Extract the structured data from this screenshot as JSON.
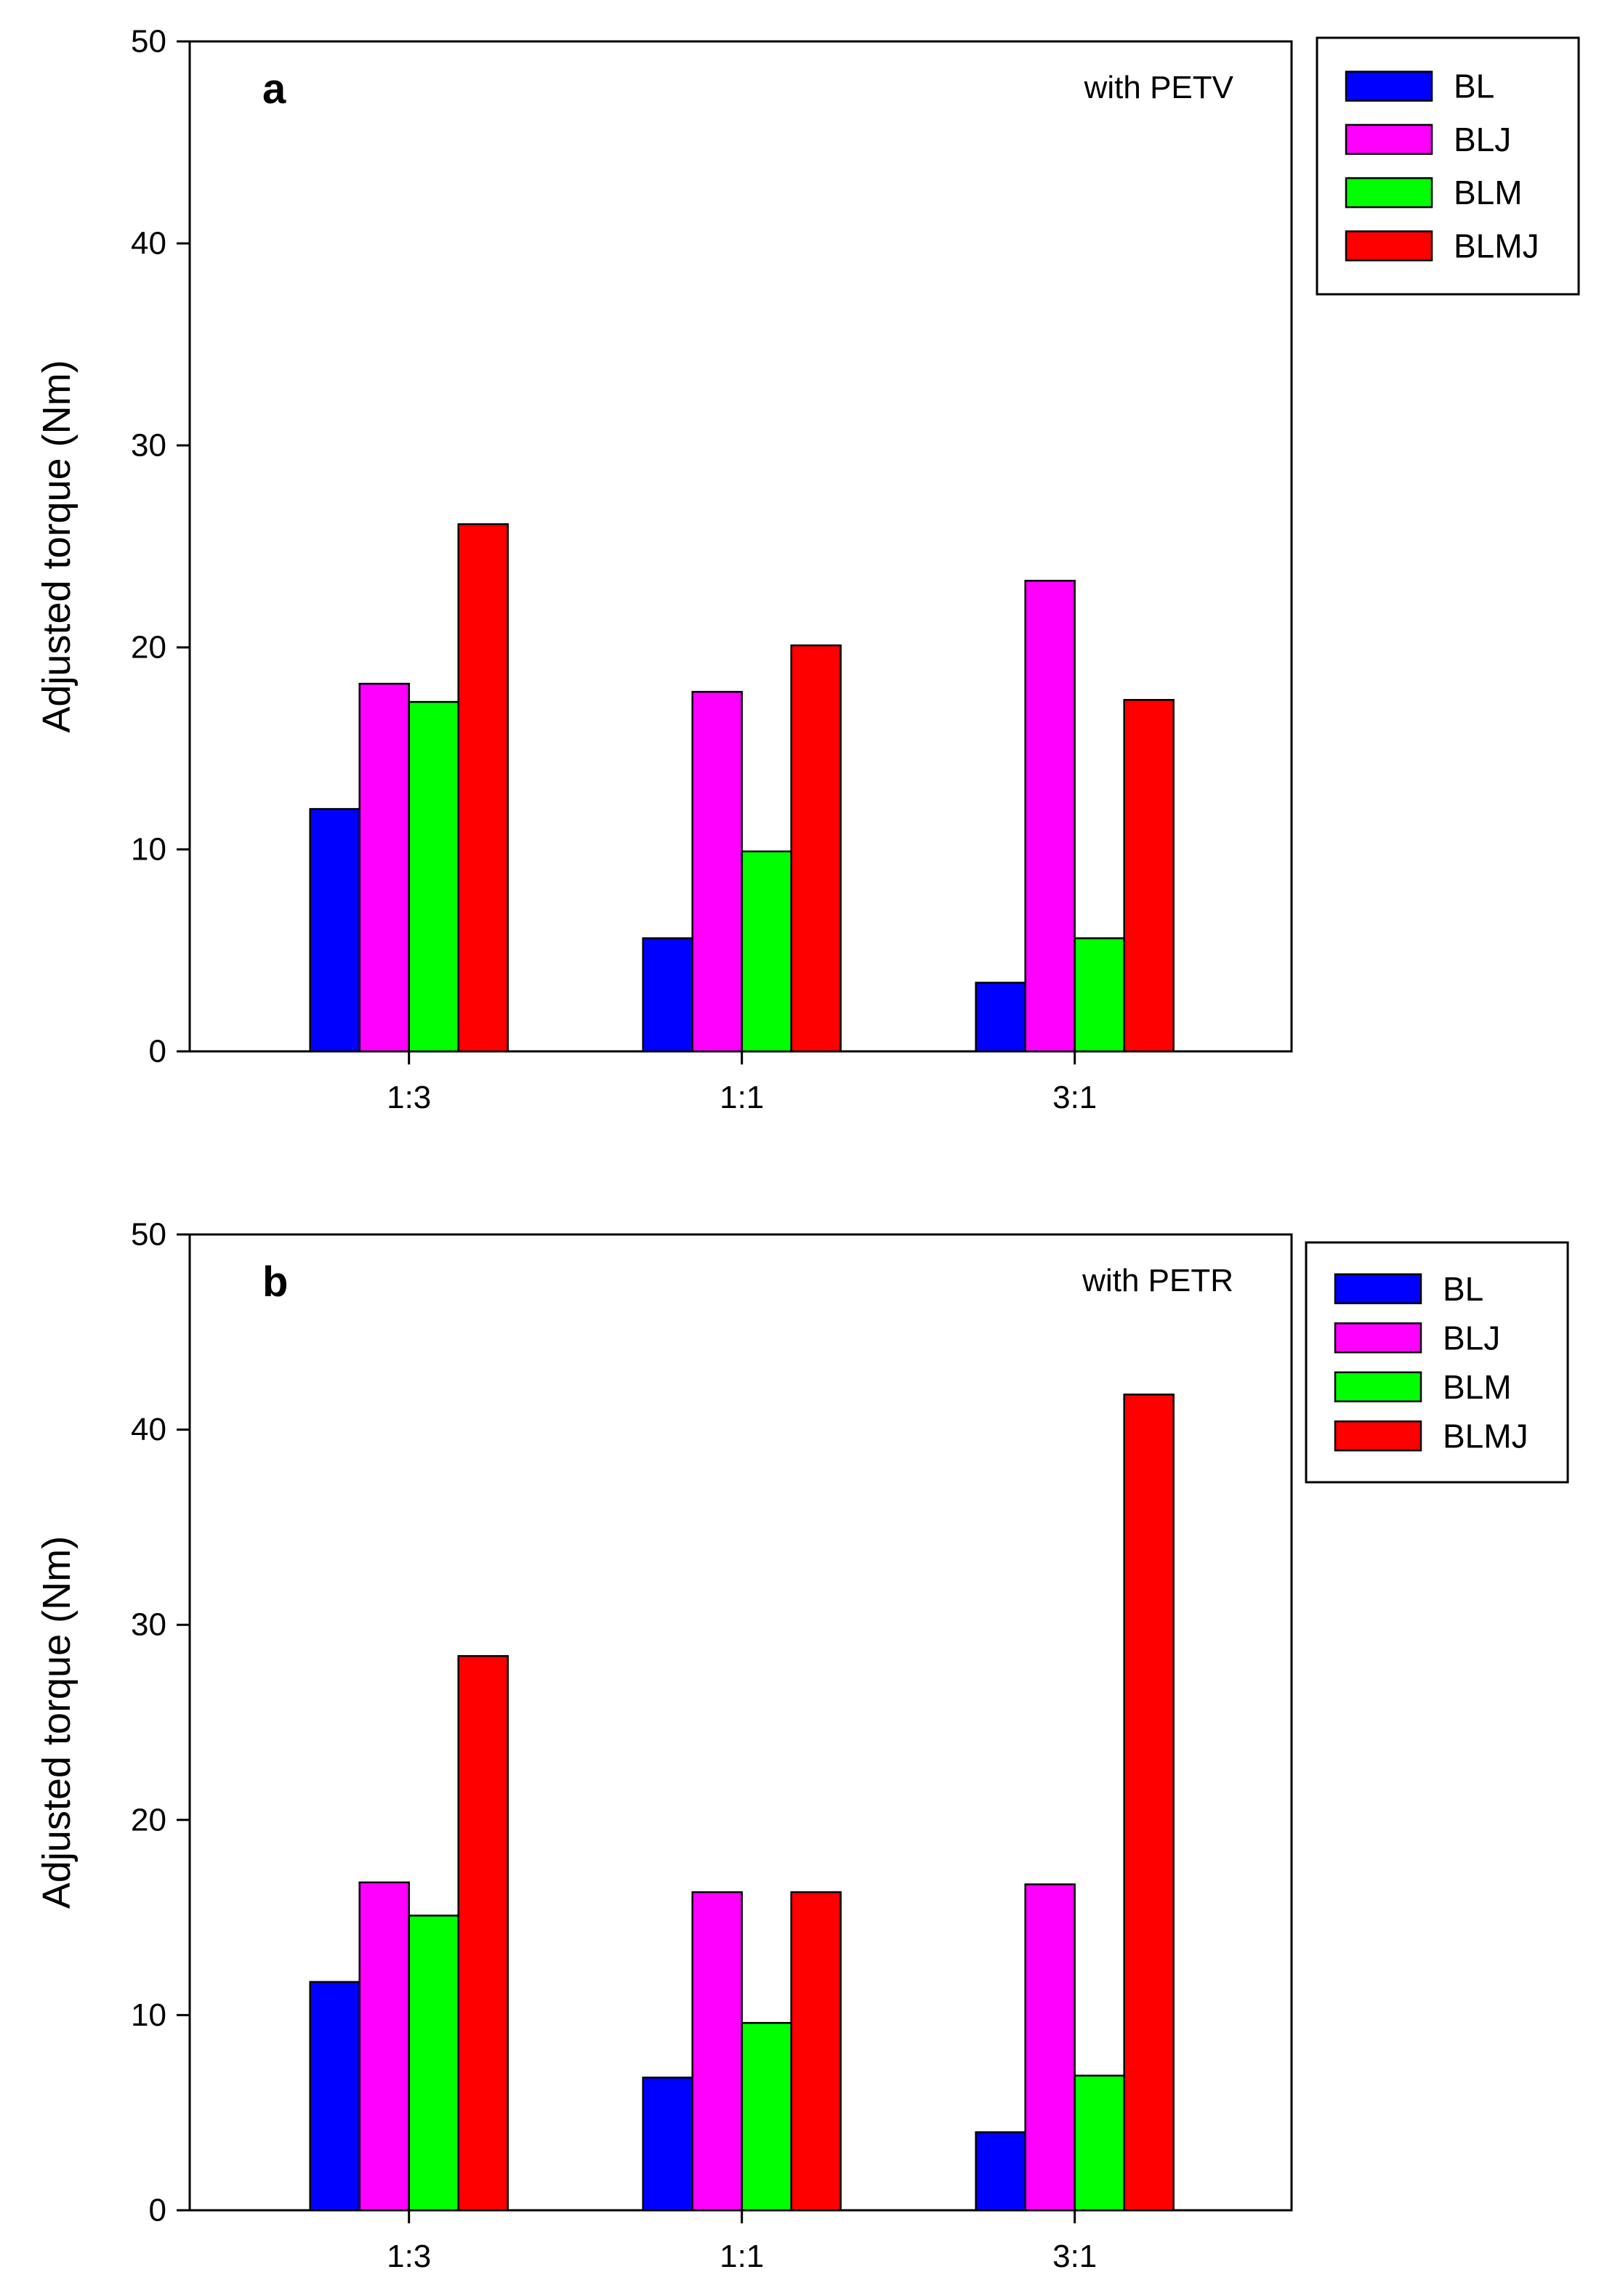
{
  "chart_data": [
    {
      "type": "bar",
      "panel_label": "a",
      "annotation": "with PETV",
      "title": "",
      "xlabel": "",
      "ylabel": "Adjusted torque (Nm)",
      "ylim": [
        0,
        50
      ],
      "yticks": [
        "0",
        "10",
        "20",
        "30",
        "40",
        "50"
      ],
      "categories": [
        "1:3",
        "1:1",
        "3:1"
      ],
      "legend_position": "outside-top-right",
      "grid": false,
      "series": [
        {
          "name": "BL",
          "color": "#0000ff",
          "values": [
            12.0,
            5.6,
            3.4
          ]
        },
        {
          "name": "BLJ",
          "color": "#ff00ff",
          "values": [
            18.2,
            17.8,
            23.3
          ]
        },
        {
          "name": "BLM",
          "color": "#00ff00",
          "values": [
            17.3,
            9.9,
            5.6
          ]
        },
        {
          "name": "BLMJ",
          "color": "#ff0000",
          "values": [
            26.1,
            20.1,
            17.4
          ]
        }
      ]
    },
    {
      "type": "bar",
      "panel_label": "b",
      "annotation": "with PETR",
      "title": "",
      "xlabel": "",
      "ylabel": "Adjusted torque (Nm)",
      "ylim": [
        0,
        50
      ],
      "yticks": [
        "0",
        "10",
        "20",
        "30",
        "40",
        "50"
      ],
      "categories": [
        "1:3",
        "1:1",
        "3:1"
      ],
      "legend_position": "outside-top-right",
      "grid": false,
      "series": [
        {
          "name": "BL",
          "color": "#0000ff",
          "values": [
            11.7,
            6.8,
            4.0
          ]
        },
        {
          "name": "BLJ",
          "color": "#ff00ff",
          "values": [
            16.8,
            16.3,
            16.7
          ]
        },
        {
          "name": "BLM",
          "color": "#00ff00",
          "values": [
            15.1,
            9.6,
            6.9
          ]
        },
        {
          "name": "BLMJ",
          "color": "#ff0000",
          "values": [
            28.4,
            16.3,
            41.8
          ]
        }
      ]
    }
  ]
}
